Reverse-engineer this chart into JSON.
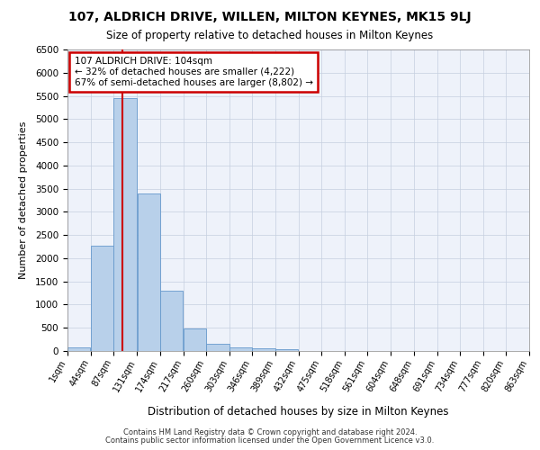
{
  "title1": "107, ALDRICH DRIVE, WILLEN, MILTON KEYNES, MK15 9LJ",
  "title2": "Size of property relative to detached houses in Milton Keynes",
  "xlabel": "Distribution of detached houses by size in Milton Keynes",
  "ylabel": "Number of detached properties",
  "footer1": "Contains HM Land Registry data © Crown copyright and database right 2024.",
  "footer2": "Contains public sector information licensed under the Open Government Licence v3.0.",
  "annotation_title": "107 ALDRICH DRIVE: 104sqm",
  "annotation_line1": "← 32% of detached houses are smaller (4,222)",
  "annotation_line2": "67% of semi-detached houses are larger (8,802) →",
  "property_size": 104,
  "bar_values": [
    75,
    2275,
    5450,
    3390,
    1295,
    480,
    160,
    80,
    55,
    45,
    0,
    0,
    0,
    0,
    0,
    0,
    0,
    0,
    0,
    0
  ],
  "bin_edges": [
    1,
    44,
    87,
    131,
    174,
    217,
    260,
    303,
    346,
    389,
    432,
    475,
    518,
    561,
    604,
    648,
    691,
    734,
    777,
    820,
    863
  ],
  "tick_labels": [
    "1sqm",
    "44sqm",
    "87sqm",
    "131sqm",
    "174sqm",
    "217sqm",
    "260sqm",
    "303sqm",
    "346sqm",
    "389sqm",
    "432sqm",
    "475sqm",
    "518sqm",
    "561sqm",
    "604sqm",
    "648sqm",
    "691sqm",
    "734sqm",
    "777sqm",
    "820sqm",
    "863sqm"
  ],
  "bar_color": "#b8d0ea",
  "bar_edge_color": "#6699cc",
  "vline_color": "#cc0000",
  "vline_x": 104,
  "annotation_box_color": "#cc0000",
  "background_color": "#eef2fa",
  "grid_color": "#c5cfe0",
  "ylim": [
    0,
    6500
  ],
  "yticks": [
    0,
    500,
    1000,
    1500,
    2000,
    2500,
    3000,
    3500,
    4000,
    4500,
    5000,
    5500,
    6000,
    6500
  ]
}
